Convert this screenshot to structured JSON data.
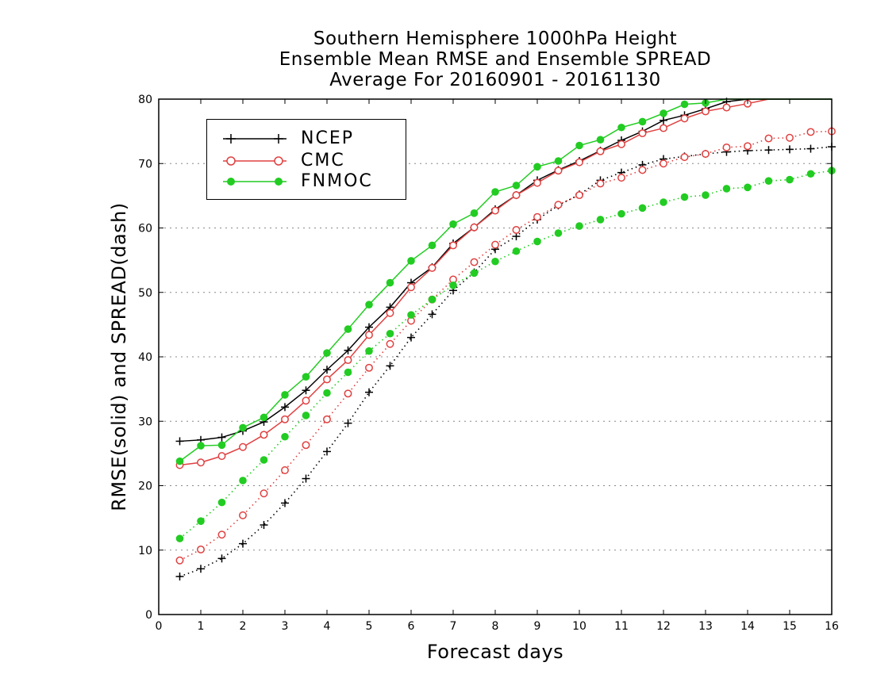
{
  "title_lines": [
    "Southern Hemisphere 1000hPa Height",
    "Ensemble Mean RMSE and Ensemble SPREAD",
    "Average For 20160901 - 20161130"
  ],
  "chart_data": {
    "type": "line",
    "title": "Southern Hemisphere 1000hPa Height Ensemble Mean RMSE and Ensemble SPREAD Average For 20160901 - 20161130",
    "xlabel": "Forecast days",
    "ylabel": "RMSE(solid) and SPREAD(dash)",
    "xlim": [
      0,
      16
    ],
    "ylim": [
      0,
      80
    ],
    "xticks": [
      0,
      1,
      2,
      3,
      4,
      5,
      6,
      7,
      8,
      9,
      10,
      11,
      12,
      13,
      14,
      15,
      16
    ],
    "yticks": [
      0,
      10,
      20,
      30,
      40,
      50,
      60,
      70,
      80
    ],
    "grid": "horizontal dotted",
    "legend_position": "top-left",
    "x": [
      0.5,
      1,
      1.5,
      2,
      2.5,
      3,
      3.5,
      4,
      4.5,
      5,
      5.5,
      6,
      6.5,
      7,
      7.5,
      8,
      8.5,
      9,
      9.5,
      10,
      10.5,
      11,
      11.5,
      12,
      12.5,
      13,
      13.5,
      14,
      14.5,
      15,
      15.5,
      16
    ],
    "series": [
      {
        "name": "NCEP",
        "style": "solid",
        "color": "#000000",
        "marker": "plus",
        "values": [
          26.9,
          27.1,
          27.5,
          28.5,
          29.9,
          32.2,
          34.8,
          38.0,
          41.0,
          44.6,
          47.7,
          51.5,
          53.9,
          57.6,
          60.1,
          62.9,
          65.1,
          67.4,
          69.0,
          70.4,
          72.0,
          73.6,
          75.0,
          76.7,
          77.5,
          78.5,
          79.6,
          80,
          80,
          80,
          80,
          80
        ]
      },
      {
        "name": "CMC",
        "style": "solid",
        "color": "#e04040",
        "marker": "open-circle",
        "values": [
          23.2,
          23.6,
          24.6,
          26.0,
          27.9,
          30.3,
          33.2,
          36.5,
          39.5,
          43.4,
          46.8,
          50.8,
          53.8,
          57.3,
          60.1,
          62.7,
          65.1,
          67.0,
          68.9,
          70.2,
          71.9,
          73.0,
          74.7,
          75.5,
          77.0,
          78.1,
          78.7,
          79.3,
          80.0,
          null,
          null,
          null
        ]
      },
      {
        "name": "FNMOC",
        "style": "solid",
        "color": "#22cc22",
        "marker": "filled-circle",
        "values": [
          23.8,
          26.2,
          26.3,
          29.0,
          30.6,
          34.1,
          36.9,
          40.6,
          44.3,
          48.1,
          51.5,
          54.9,
          57.3,
          60.6,
          62.3,
          65.6,
          66.6,
          69.5,
          70.4,
          72.8,
          73.7,
          75.6,
          76.5,
          77.8,
          79.2,
          79.4,
          80,
          80,
          80,
          80,
          80,
          80
        ]
      },
      {
        "name": "",
        "style": "dotted",
        "color": "#000000",
        "marker": "plus",
        "values": [
          5.9,
          7.1,
          8.7,
          11.0,
          13.9,
          17.3,
          21.1,
          25.3,
          29.7,
          34.5,
          38.6,
          43.0,
          46.6,
          50.3,
          53.1,
          56.7,
          58.7,
          61.3,
          63.5,
          65.2,
          67.4,
          68.6,
          69.8,
          70.7,
          71.1,
          71.5,
          71.8,
          72.0,
          72.1,
          72.2,
          72.3,
          72.6
        ]
      },
      {
        "name": "",
        "style": "dotted",
        "color": "#e04040",
        "marker": "open-circle",
        "values": [
          8.4,
          10.1,
          12.4,
          15.4,
          18.8,
          22.4,
          26.3,
          30.3,
          34.3,
          38.3,
          42.0,
          45.6,
          48.9,
          52.0,
          54.7,
          57.4,
          59.7,
          61.7,
          63.6,
          65.1,
          66.9,
          67.8,
          69.0,
          70.0,
          71.0,
          71.5,
          72.5,
          72.7,
          73.9,
          74.0,
          74.9,
          75.0
        ]
      },
      {
        "name": "",
        "style": "dotted",
        "color": "#22cc22",
        "marker": "filled-circle",
        "values": [
          11.8,
          14.5,
          17.4,
          20.8,
          24.0,
          27.6,
          30.9,
          34.4,
          37.6,
          40.9,
          43.6,
          46.5,
          48.9,
          51.1,
          53.0,
          54.8,
          56.4,
          57.9,
          59.2,
          60.3,
          61.3,
          62.2,
          63.1,
          64.0,
          64.8,
          65.1,
          66.1,
          66.3,
          67.3,
          67.5,
          68.4,
          68.9
        ]
      }
    ]
  },
  "legend": [
    {
      "label": "NCEP",
      "color": "#000000",
      "marker": "plus"
    },
    {
      "label": "CMC",
      "color": "#e04040",
      "marker": "open-circle"
    },
    {
      "label": "FNMOC",
      "color": "#22cc22",
      "marker": "filled-circle"
    }
  ]
}
